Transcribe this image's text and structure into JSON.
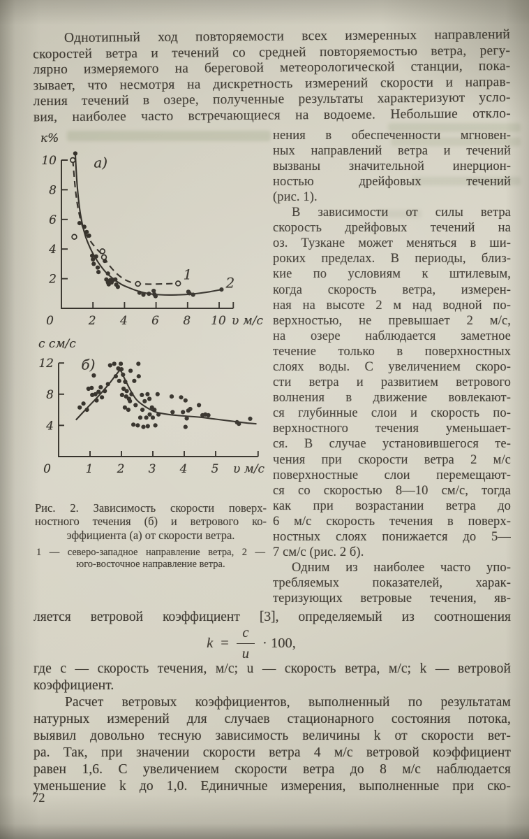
{
  "page": {
    "number": "72"
  },
  "paragraph1": {
    "indent": true,
    "ends": false,
    "lines": [
      "Однотипный ход повторяемости всех измеренных направлений",
      "скоростей ветра и течений со средней повторяемостью ветра, регу-",
      "лярно измеряемого на береговой метеорологической станции, пока-",
      "зывает, что несмотря на дискретность измерений скорости и направ-",
      "ления течений в озере, полученные результаты характеризуют усло-",
      "вия, наиболее часто встречающиеся на водоеме. Небольшие откло-"
    ]
  },
  "right_column": {
    "paragraphs": [
      {
        "indent": false,
        "ends": true,
        "lines": [
          "нения в обеспеченности мгновен-",
          "ных направлений ветра и течений",
          "вызваны значительной инерцион-",
          "ностью дрейфовых течений",
          "(рис. 1)."
        ]
      },
      {
        "indent": true,
        "ends": true,
        "lines": [
          "В зависимости от силы ветра",
          "скорость дрейфовых течений на",
          "оз. Тузкане может меняться в ши-",
          "роких пределах. В периоды, близ-",
          "кие по условиям к штилевым,",
          "когда скорость ветра, измерен-",
          "ная на высоте 2 м над водной по-",
          "верхностью, не превышает 2 м/с,",
          "на озере наблюдается заметное",
          "течение только в поверхностных",
          "слоях воды. С увеличением скоро-",
          "сти ветра и развитием ветрового",
          "волнения в движение вовлекают-",
          "ся глубинные слои и скорость по-",
          "верхностного течения уменьшает-",
          "ся. В случае установившегося те-",
          "чения при скорости ветра 2 м/с",
          "поверхностные слои перемещают-",
          "ся со скоростью 8—10 см/с, тогда",
          "как при возрастании ветра до",
          "6 м/с скорость течения в поверх-",
          "ностных слоях понижается до 5—",
          "7 см/с (рис. 2 б)."
        ]
      },
      {
        "indent": true,
        "ends": false,
        "lines": [
          "Одним из наиболее часто упо-",
          "требляемых показателей, харак-",
          "теризующих ветровые течения, яв-"
        ]
      }
    ]
  },
  "figure": {
    "caption": {
      "ends": true,
      "lines": [
        "Рис. 2. Зависимость скорости поверх-",
        "ностного течения (б) и ветрового ко-",
        "эффициента (а) от скорости ветра."
      ]
    },
    "note": {
      "ends": true,
      "lines": [
        "1 — северо-западное направление ветра, 2 —",
        "юго-восточное направление ветра."
      ]
    }
  },
  "bridge_line": "ляется ветровой коэффициент [3], определяемый из соотношения",
  "formula": {
    "lhs": "k",
    "eq": "=",
    "numerator": "c",
    "denominator": "u",
    "factor": "· 100,"
  },
  "where_para": {
    "indent": false,
    "ends": true,
    "lines": [
      "где c — скорость течения, м/с; u — скорость ветра, м/с; k — ветровой",
      "коэффициент."
    ]
  },
  "last_para": {
    "indent": true,
    "ends": false,
    "lines": [
      "Расчет ветровых коэффициентов, выполненный по результатам",
      "натурных измерений для случаев стационарного состояния потока,",
      "выявил довольно тесную зависимость величины k от скорости вет-",
      "ра. Так, при значении скорости ветра 4 м/с ветровой коэффициент",
      "равен 1,6. С увеличением скорости ветра до 8 м/с наблюдается",
      "уменьшение k до 1,0. Единичные измерения, выполненные при ско-"
    ]
  },
  "chart_data": [
    {
      "type": "scatter",
      "panel_label": "а)",
      "panel_at": [
        2.05,
        9.5
      ],
      "ylabel": "к%",
      "xlabel": "υ м/с",
      "xlim": [
        0,
        10.9
      ],
      "ylim": [
        0,
        10.9
      ],
      "x_ticks": [
        2,
        4,
        6,
        8,
        10
      ],
      "y_ticks": [
        2,
        4,
        6,
        8,
        10
      ],
      "origin_label": "0",
      "grid": false,
      "legend": "inline end-of-curve labels",
      "series": [
        {
          "name": "1",
          "line": "dashed",
          "marker": "open",
          "label_at": [
            7.72,
            1.95
          ],
          "curve": [
            [
              0.72,
              10.0
            ],
            [
              0.9,
              7.9
            ],
            [
              1.1,
              6.5
            ],
            [
              1.4,
              5.35
            ],
            [
              1.8,
              4.6
            ],
            [
              2.2,
              4.05
            ],
            [
              2.6,
              3.6
            ],
            [
              3.0,
              2.95
            ],
            [
              3.5,
              2.35
            ],
            [
              4.0,
              1.95
            ],
            [
              4.5,
              1.72
            ],
            [
              4.85,
              1.65
            ],
            [
              5.6,
              1.63
            ],
            [
              6.5,
              1.65
            ],
            [
              7.4,
              1.68
            ]
          ],
          "points": [
            [
              0.72,
              10.0
            ],
            [
              0.82,
              4.82
            ],
            [
              2.6,
              3.85
            ],
            [
              2.7,
              3.45
            ],
            [
              4.85,
              1.65
            ],
            [
              7.4,
              1.68
            ]
          ]
        },
        {
          "name": "2",
          "line": "solid",
          "marker": "filled",
          "label_at": [
            10.42,
            1.38
          ],
          "curve": [
            [
              0.88,
              10.45
            ],
            [
              1.0,
              8.3
            ],
            [
              1.2,
              6.4
            ],
            [
              1.5,
              4.95
            ],
            [
              1.9,
              3.9
            ],
            [
              2.3,
              3.15
            ],
            [
              2.8,
              2.45
            ],
            [
              3.3,
              1.98
            ],
            [
              3.8,
              1.62
            ],
            [
              4.3,
              1.38
            ],
            [
              4.9,
              1.15
            ],
            [
              5.5,
              1.0
            ],
            [
              6.2,
              0.92
            ],
            [
              7.0,
              0.9
            ],
            [
              7.8,
              0.93
            ],
            [
              8.6,
              1.0
            ],
            [
              9.4,
              1.12
            ],
            [
              10.15,
              1.27
            ]
          ],
          "points": [
            [
              0.88,
              10.45
            ],
            [
              1.15,
              5.75
            ],
            [
              1.45,
              5.5
            ],
            [
              1.6,
              5.15
            ],
            [
              1.75,
              4.9
            ],
            [
              1.95,
              3.55
            ],
            [
              2.0,
              3.3
            ],
            [
              2.05,
              3.0
            ],
            [
              2.2,
              3.5
            ],
            [
              2.3,
              2.75
            ],
            [
              2.35,
              2.45
            ],
            [
              2.75,
              3.2
            ],
            [
              2.95,
              2.35
            ],
            [
              2.85,
              1.95
            ],
            [
              2.95,
              1.75
            ],
            [
              3.0,
              1.62
            ],
            [
              3.1,
              1.9
            ],
            [
              3.18,
              1.75
            ],
            [
              3.28,
              1.92
            ],
            [
              3.42,
              1.95
            ],
            [
              3.48,
              1.6
            ],
            [
              3.58,
              1.45
            ],
            [
              4.95,
              1.05
            ],
            [
              5.2,
              0.92
            ],
            [
              5.55,
              0.98
            ],
            [
              5.85,
              1.18
            ],
            [
              5.9,
              0.95
            ],
            [
              5.97,
              0.82
            ],
            [
              8.05,
              1.12
            ],
            [
              8.12,
              1.02
            ],
            [
              8.35,
              0.92
            ],
            [
              10.15,
              1.27
            ]
          ]
        }
      ]
    },
    {
      "type": "scatter",
      "panel_label": "б)",
      "panel_at": [
        0.72,
        11.15
      ],
      "ylabel": "с см/с",
      "xlabel": "υ м/с",
      "xlim": [
        0,
        6.35
      ],
      "ylim": [
        0,
        12.6
      ],
      "x_ticks": [
        1,
        2,
        3,
        4,
        5
      ],
      "y_ticks": [
        4,
        8,
        12
      ],
      "origin_label": "0",
      "grid": false,
      "series": [
        {
          "name": "",
          "line": "solid",
          "marker": "filled",
          "label_at": null,
          "curve": [
            [
              0.55,
              4.7
            ],
            [
              0.9,
              6.2
            ],
            [
              1.3,
              7.9
            ],
            [
              1.6,
              9.3
            ],
            [
              1.85,
              10.6
            ],
            [
              1.97,
              11.0
            ],
            [
              2.1,
              10.0
            ],
            [
              2.3,
              8.4
            ],
            [
              2.5,
              7.2
            ],
            [
              2.8,
              6.3
            ],
            [
              3.1,
              5.7
            ],
            [
              3.5,
              5.4
            ],
            [
              4.0,
              5.2
            ],
            [
              4.5,
              5.05
            ],
            [
              5.0,
              4.8
            ],
            [
              5.5,
              4.55
            ],
            [
              6.0,
              4.3
            ],
            [
              6.3,
              4.2
            ]
          ],
          "points": [
            [
              0.67,
              6.3
            ],
            [
              0.79,
              6.8
            ],
            [
              0.9,
              6.0
            ],
            [
              0.95,
              8.7
            ],
            [
              1.05,
              8.8
            ],
            [
              1.07,
              7.9
            ],
            [
              1.12,
              10.4
            ],
            [
              1.17,
              8.0
            ],
            [
              1.21,
              7.2
            ],
            [
              1.27,
              8.3
            ],
            [
              1.34,
              8.9
            ],
            [
              1.38,
              7.6
            ],
            [
              1.47,
              8.4
            ],
            [
              1.57,
              9.3
            ],
            [
              1.64,
              11.7
            ],
            [
              1.77,
              11.9
            ],
            [
              1.82,
              10.3
            ],
            [
              1.9,
              11.3
            ],
            [
              1.93,
              9.7
            ],
            [
              1.98,
              11.9
            ],
            [
              2.0,
              11.2
            ],
            [
              2.02,
              7.9
            ],
            [
              2.05,
              10.5
            ],
            [
              2.07,
              8.7
            ],
            [
              2.11,
              6.3
            ],
            [
              2.12,
              9.6
            ],
            [
              2.15,
              7.7
            ],
            [
              2.17,
              8.4
            ],
            [
              2.22,
              6.0
            ],
            [
              2.24,
              7.4
            ],
            [
              2.27,
              7.1
            ],
            [
              2.29,
              11.0
            ],
            [
              2.32,
              8.0
            ],
            [
              2.38,
              4.1
            ],
            [
              2.41,
              9.7
            ],
            [
              2.45,
              6.6
            ],
            [
              2.52,
              4.0
            ],
            [
              2.54,
              11.9
            ],
            [
              2.55,
              10.3
            ],
            [
              2.6,
              5.0
            ],
            [
              2.65,
              7.9
            ],
            [
              2.67,
              6.0
            ],
            [
              2.7,
              3.8
            ],
            [
              2.74,
              7.1
            ],
            [
              2.79,
              5.0
            ],
            [
              2.83,
              8.0
            ],
            [
              2.84,
              3.9
            ],
            [
              2.89,
              7.4
            ],
            [
              2.9,
              5.4
            ],
            [
              2.97,
              6.3
            ],
            [
              3.0,
              5.0
            ],
            [
              3.05,
              6.0
            ],
            [
              3.08,
              4.0
            ],
            [
              3.15,
              8.0
            ],
            [
              3.18,
              5.4
            ],
            [
              3.6,
              7.7
            ],
            [
              3.63,
              5.7
            ],
            [
              3.9,
              7.6
            ],
            [
              3.96,
              5.7
            ],
            [
              4.04,
              7.2
            ],
            [
              4.04,
              3.8
            ],
            [
              4.08,
              4.9
            ],
            [
              4.13,
              5.9
            ],
            [
              4.19,
              6.1
            ],
            [
              4.47,
              6.6
            ],
            [
              4.58,
              5.3
            ],
            [
              4.67,
              5.4
            ],
            [
              4.77,
              5.3
            ],
            [
              5.68,
              4.4
            ],
            [
              5.74,
              4.2
            ],
            [
              6.1,
              4.85
            ]
          ]
        }
      ]
    }
  ]
}
